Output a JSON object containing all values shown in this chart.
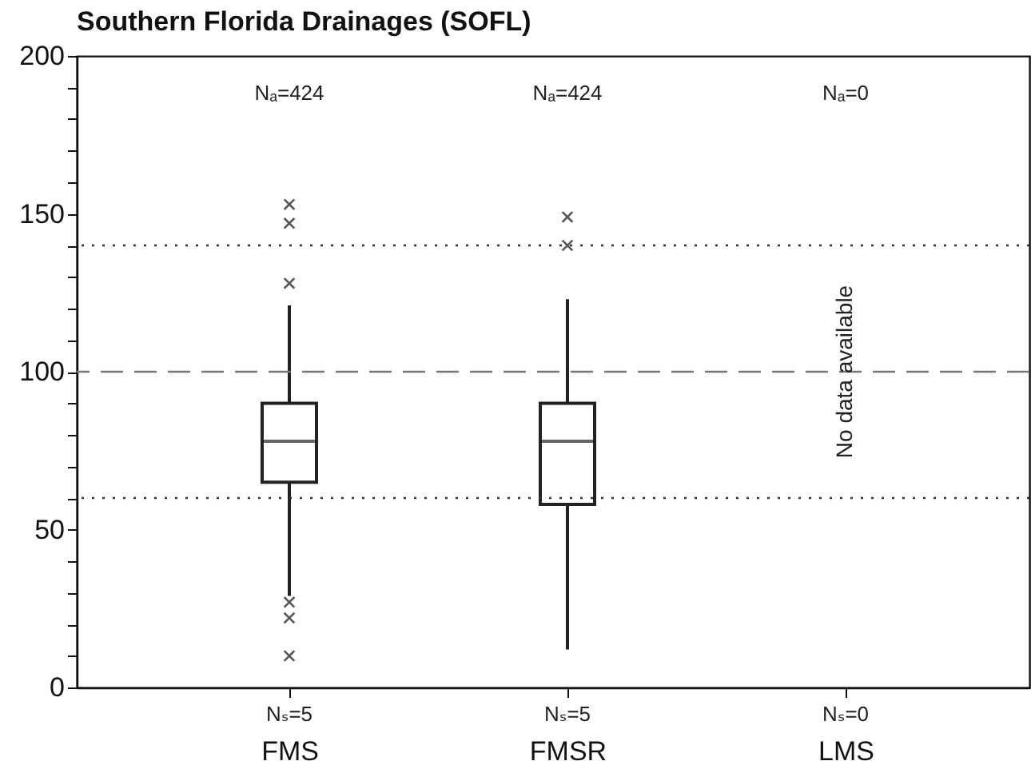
{
  "chart_data": {
    "type": "box",
    "title": "Southern Florida Drainages (SOFL)",
    "categories": [
      "FMS",
      "FMSR",
      "LMS"
    ],
    "boxes": [
      {
        "low": 29,
        "q1": 65,
        "median": 78,
        "q3": 90,
        "high": 121,
        "outliers": [
          153,
          147,
          128,
          27,
          22,
          10
        ]
      },
      {
        "low": 12,
        "q1": 58,
        "median": 78,
        "q3": 90,
        "high": 123,
        "outliers": [
          149,
          140
        ]
      },
      null
    ],
    "ylim": [
      0,
      200
    ],
    "yticks": [
      0,
      {
        "value": 10,
        "label": null
      },
      {
        "value": 20,
        "label": null
      },
      {
        "value": 30,
        "label": null
      },
      {
        "value": 40,
        "label": null
      },
      50,
      {
        "value": 60,
        "label": null
      },
      {
        "value": 70,
        "label": null
      },
      {
        "value": 80,
        "label": null
      },
      {
        "value": 90,
        "label": null
      },
      100,
      {
        "value": 110,
        "label": null
      },
      {
        "value": 120,
        "label": null
      },
      {
        "value": 130,
        "label": null
      },
      {
        "value": 140,
        "label": null
      },
      150,
      {
        "value": 160,
        "label": null
      },
      {
        "value": 170,
        "label": null
      },
      {
        "value": 180,
        "label": null
      },
      {
        "value": 190,
        "label": null
      },
      200
    ],
    "ref_lines": [
      {
        "axis": "y",
        "value": 140,
        "line_style": "dotted",
        "color": "#333333"
      },
      {
        "axis": "y",
        "value": 100,
        "line_style": "dashed",
        "color": "#777777"
      },
      {
        "axis": "y",
        "value": 60,
        "line_style": "dotted",
        "color": "#333333"
      }
    ],
    "annotations": [
      "Nₐ=424",
      "Nₐ=424",
      "Nₐ=0",
      "Nₛ=5",
      "Nₛ=5",
      "Nₛ=0",
      {
        "text": "No data available",
        "x": "LMS",
        "y": 100
      }
    ],
    "grid": false,
    "marker": "cross"
  }
}
